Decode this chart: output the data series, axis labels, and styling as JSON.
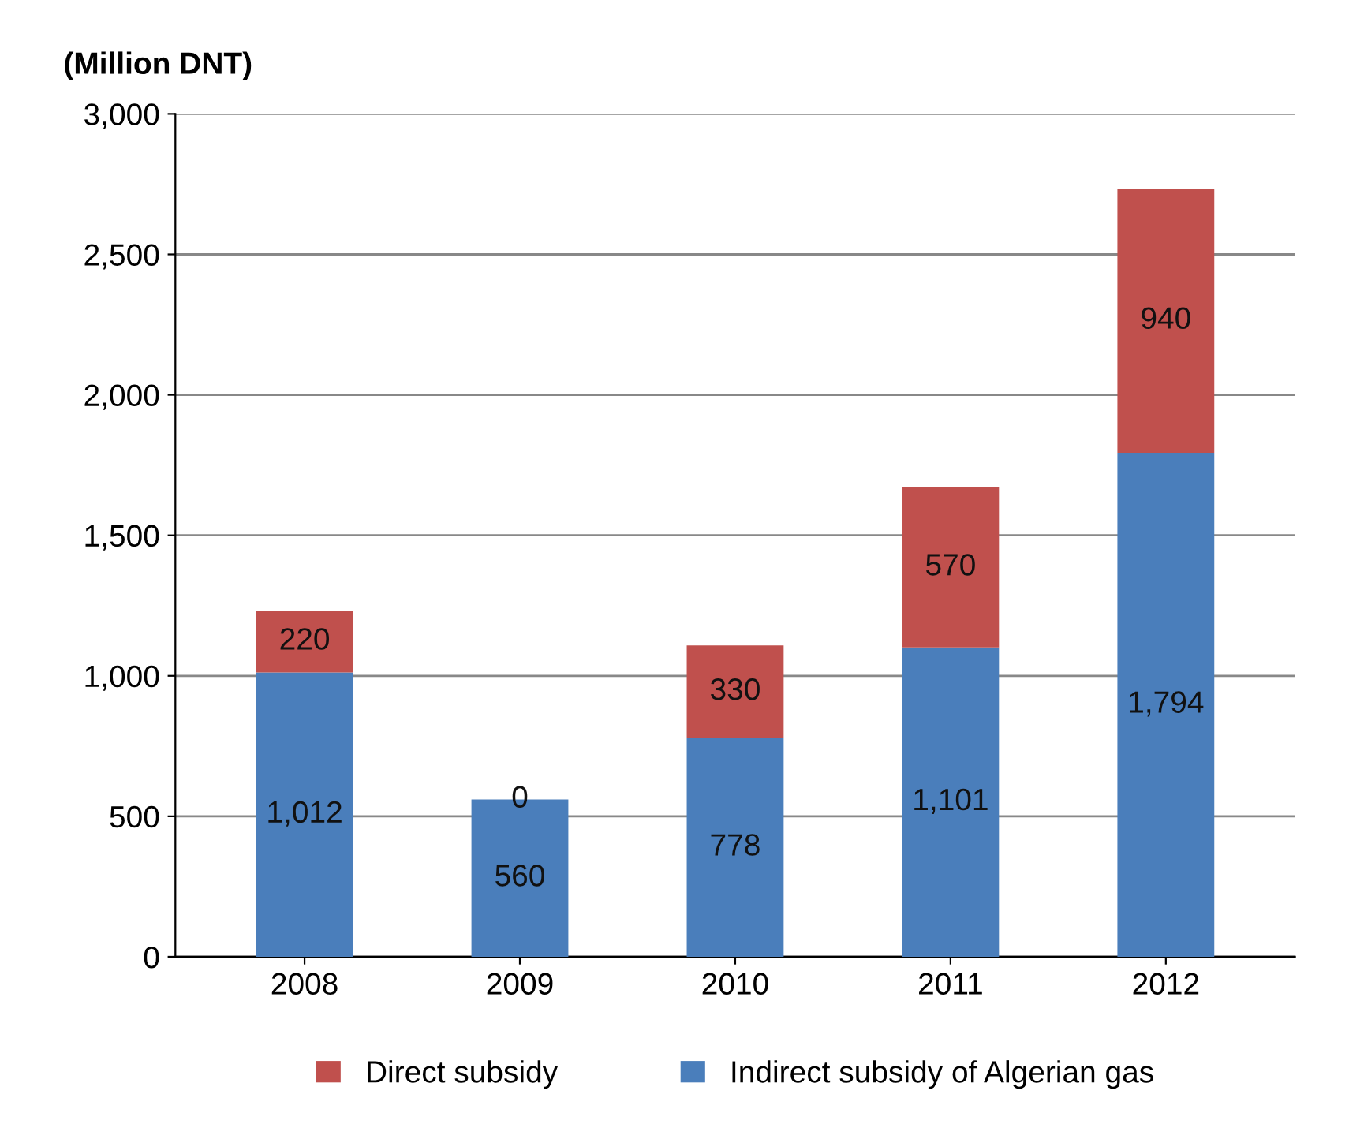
{
  "chart_data": {
    "type": "bar",
    "ylabel": "(Million DNT)",
    "categories": [
      "2008",
      "2009",
      "2010",
      "2011",
      "2012"
    ],
    "stacked": true,
    "series": [
      {
        "name": "Indirect subsidy of Algerian gas",
        "color": "#4a7ebb",
        "values": [
          1012,
          560,
          778,
          1101,
          1794
        ],
        "value_labels": [
          "1,012",
          "560",
          "778",
          "1,101",
          "1,794"
        ]
      },
      {
        "name": "Direct subsidy",
        "color": "#c0504d",
        "values": [
          220,
          0,
          330,
          570,
          940
        ],
        "value_labels": [
          "220",
          "0",
          "330",
          "570",
          "940"
        ]
      }
    ],
    "ylim": [
      0,
      3000
    ],
    "yticks": [
      0,
      500,
      {
        "value": 1000,
        "label": "1,000"
      },
      {
        "value": 1500,
        "label": "1,500"
      },
      {
        "value": 2000,
        "label": "2,000"
      },
      {
        "value": 2500,
        "label": "2,500"
      },
      {
        "value": 3000,
        "label": "3,000"
      }
    ],
    "grid": "y",
    "legend": "bottom"
  }
}
